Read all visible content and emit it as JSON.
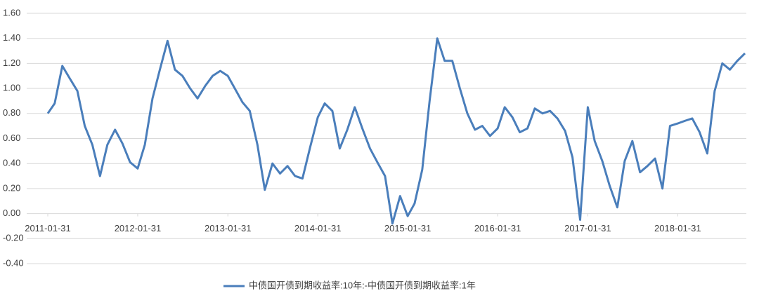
{
  "chart_data": {
    "type": "line",
    "x": [
      "2011-01-31",
      "2011-02-28",
      "2011-03-31",
      "2011-04-30",
      "2011-05-31",
      "2011-06-30",
      "2011-07-31",
      "2011-08-31",
      "2011-09-30",
      "2011-10-31",
      "2011-11-30",
      "2011-12-31",
      "2012-01-31",
      "2012-02-29",
      "2012-03-31",
      "2012-04-30",
      "2012-05-31",
      "2012-06-30",
      "2012-07-31",
      "2012-08-31",
      "2012-09-30",
      "2012-10-31",
      "2012-11-30",
      "2012-12-31",
      "2013-01-31",
      "2013-02-28",
      "2013-03-31",
      "2013-04-30",
      "2013-05-31",
      "2013-06-30",
      "2013-07-31",
      "2013-08-31",
      "2013-09-30",
      "2013-10-31",
      "2013-11-30",
      "2013-12-31",
      "2014-01-31",
      "2014-02-28",
      "2014-03-31",
      "2014-04-30",
      "2014-05-31",
      "2014-06-30",
      "2014-07-31",
      "2014-08-31",
      "2014-09-30",
      "2014-10-31",
      "2014-11-30",
      "2014-12-31",
      "2015-01-31",
      "2015-02-28",
      "2015-03-31",
      "2015-04-30",
      "2015-05-31",
      "2015-06-30",
      "2015-07-31",
      "2015-08-31",
      "2015-09-30",
      "2015-10-31",
      "2015-11-30",
      "2015-12-31",
      "2016-01-31",
      "2016-02-29",
      "2016-03-31",
      "2016-04-30",
      "2016-05-31",
      "2016-06-30",
      "2016-07-31",
      "2016-08-31",
      "2016-09-30",
      "2016-10-31",
      "2016-11-30",
      "2016-12-31",
      "2017-01-31",
      "2017-02-28",
      "2017-03-31",
      "2017-04-30",
      "2017-05-31",
      "2017-06-30",
      "2017-07-31",
      "2017-08-31",
      "2017-09-30",
      "2017-10-31",
      "2017-11-30",
      "2017-12-31",
      "2018-01-31",
      "2018-02-28",
      "2018-03-31",
      "2018-04-30",
      "2018-05-31",
      "2018-06-30",
      "2018-07-31",
      "2018-08-31",
      "2018-09-30",
      "2018-10-31"
    ],
    "series": [
      {
        "name": "中债国开债到期收益率:10年:-中债国开债到期收益率:1年",
        "color": "#4a7ebb",
        "values": [
          0.8,
          0.88,
          1.18,
          1.08,
          0.98,
          0.7,
          0.55,
          0.3,
          0.55,
          0.67,
          0.56,
          0.41,
          0.36,
          0.55,
          0.92,
          1.15,
          1.38,
          1.15,
          1.1,
          1.0,
          0.92,
          1.02,
          1.1,
          1.14,
          1.1,
          1.0,
          0.89,
          0.82,
          0.55,
          0.19,
          0.4,
          0.32,
          0.38,
          0.3,
          0.28,
          0.53,
          0.77,
          0.88,
          0.82,
          0.52,
          0.67,
          0.85,
          0.68,
          0.52,
          0.41,
          0.3,
          -0.08,
          0.14,
          -0.02,
          0.08,
          0.35,
          0.9,
          1.4,
          1.22,
          1.22,
          1.0,
          0.8,
          0.67,
          0.7,
          0.62,
          0.68,
          0.85,
          0.77,
          0.65,
          0.68,
          0.84,
          0.8,
          0.82,
          0.76,
          0.66,
          0.45,
          -0.05,
          0.85,
          0.58,
          0.42,
          0.22,
          0.05,
          0.42,
          0.58,
          0.33,
          0.38,
          0.44,
          0.2,
          0.7,
          0.72,
          0.74,
          0.76,
          0.65,
          0.48,
          0.98,
          1.2,
          1.15,
          1.22,
          1.28
        ]
      }
    ],
    "xlim": [
      "2011-01-31",
      "2018-10-31"
    ],
    "xticks": [
      "2011-01-31",
      "2012-01-31",
      "2013-01-31",
      "2014-01-31",
      "2015-01-31",
      "2016-01-31",
      "2017-01-31",
      "2018-01-31"
    ],
    "ylim": [
      -0.4,
      1.6
    ],
    "yticks": [
      {
        "value": -0.4,
        "label": "-0.40"
      },
      {
        "value": -0.2,
        "label": "-0.20"
      },
      {
        "value": 0,
        "label": "0.00"
      },
      {
        "value": 0.2,
        "label": "0.20"
      },
      {
        "value": 0.4,
        "label": "0.40"
      },
      {
        "value": 0.6,
        "label": "0.60"
      },
      {
        "value": 0.8,
        "label": "0.80"
      },
      {
        "value": 1.0,
        "label": "1.00"
      },
      {
        "value": 1.2,
        "label": "1.20"
      },
      {
        "value": 1.4,
        "label": "1.40"
      },
      {
        "value": 1.6,
        "label": "1.60"
      }
    ],
    "grid": true,
    "legend": "bottom"
  }
}
